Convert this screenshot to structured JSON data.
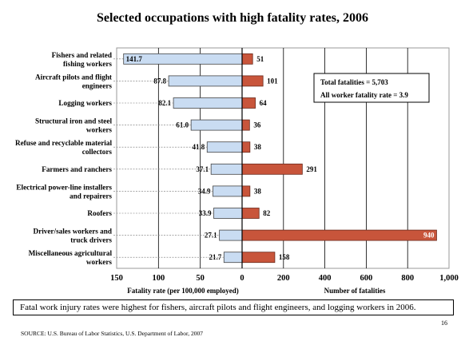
{
  "slide": {
    "caption": "Fatal work injury rates were highest for fishers, aircraft pilots and flight engineers, and logging workers in 2006.",
    "page_number": "16",
    "source": "SOURCE:  U.S. Bureau of Labor Statistics, U.S. Department of Labor, 2007"
  },
  "chart_data": {
    "type": "bar",
    "title": "Selected occupations with high fatality rates, 2006",
    "categories": [
      [
        "Fishers and related",
        "fishing workers"
      ],
      [
        "Aircraft pilots and flight",
        "engineers"
      ],
      [
        "Logging workers"
      ],
      [
        "Structural iron and steel",
        "workers"
      ],
      [
        "Refuse and recyclable material",
        "collectors"
      ],
      [
        "Farmers and ranchers"
      ],
      [
        "Electrical power-line installers",
        "and repairers"
      ],
      [
        "Roofers"
      ],
      [
        "Driver/sales workers and",
        "truck drivers"
      ],
      [
        "Miscellaneous agricultural",
        "workers"
      ]
    ],
    "series": [
      {
        "name": "Fatality rate (per 100,000 employed)",
        "values": [
          141.7,
          87.8,
          82.1,
          61.0,
          41.8,
          37.1,
          34.9,
          33.9,
          27.1,
          21.7
        ],
        "labels": [
          "141.7",
          "87.8",
          "82.1",
          "61.0",
          "41.8",
          "37.1",
          "34.9",
          "33.9",
          "27.1",
          "21.7"
        ],
        "color": "#c9dcf2",
        "xlim": [
          0,
          150
        ],
        "ticks": [
          150,
          100,
          50,
          0
        ],
        "tick_labels": [
          "150",
          "100",
          "50",
          "0"
        ],
        "xlabel": "Fatality rate (per 100,000 employed)"
      },
      {
        "name": "Number of fatalities",
        "values": [
          51,
          101,
          64,
          36,
          38,
          291,
          38,
          82,
          940,
          158
        ],
        "labels": [
          "51",
          "101",
          "64",
          "36",
          "38",
          "291",
          "38",
          "82",
          "940",
          "158"
        ],
        "color": "#c8553b",
        "xlim": [
          0,
          1000
        ],
        "ticks": [
          200,
          400,
          600,
          800,
          1000
        ],
        "tick_labels": [
          "200",
          "400",
          "600",
          "800",
          "1,000"
        ],
        "xlabel": "Number of fatalities"
      }
    ],
    "annotations": [
      "Total fatalities = 5,703",
      "All worker fatality rate = 3.9"
    ],
    "grid": true,
    "legend": "none"
  }
}
